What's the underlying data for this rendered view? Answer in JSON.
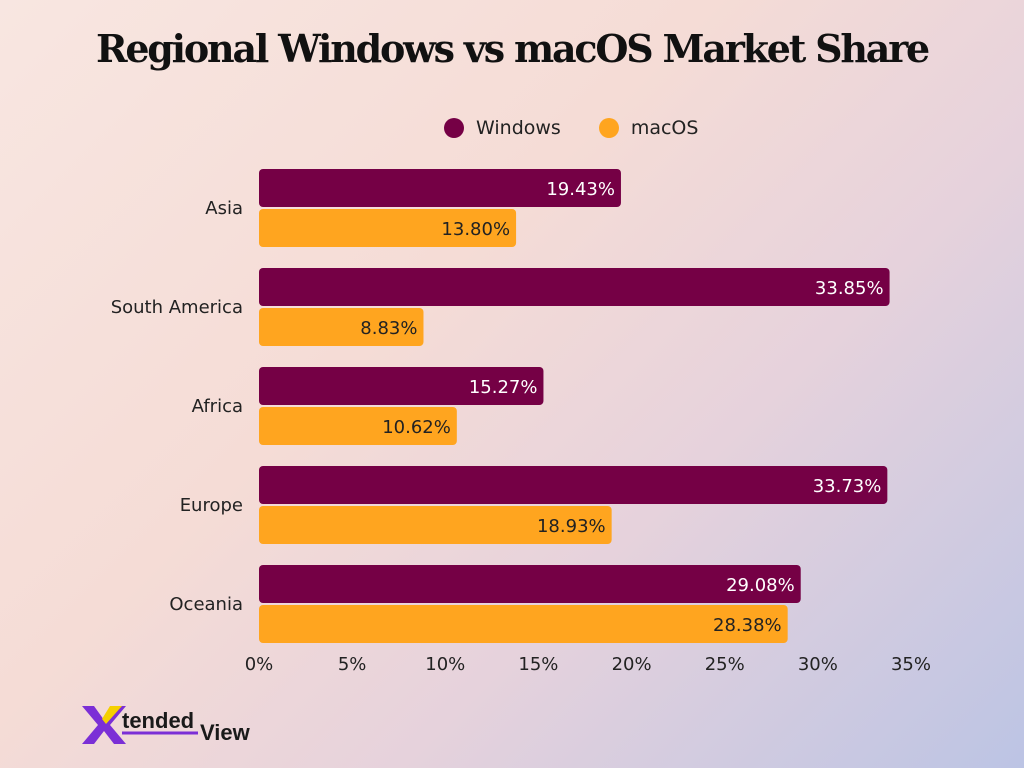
{
  "chart_data": {
    "type": "bar",
    "orientation": "horizontal",
    "title": "Regional Windows vs macOS Market Share",
    "categories": [
      "Asia",
      "South America",
      "Africa",
      "Europe",
      "Oceania"
    ],
    "series": [
      {
        "name": "Windows",
        "color": "#750045",
        "values": [
          19.43,
          33.85,
          15.27,
          33.73,
          29.08
        ],
        "labels": [
          "19.43%",
          "33.85%",
          "15.27%",
          "33.73%",
          "29.08%"
        ]
      },
      {
        "name": "macOS",
        "color": "#ffa51f",
        "values": [
          13.8,
          8.83,
          10.62,
          18.93,
          28.38
        ],
        "labels": [
          "13.80%",
          "8.83%",
          "10.62%",
          "18.93%",
          "28.38%"
        ]
      }
    ],
    "xlim": [
      0,
      35
    ],
    "xticks": [
      0,
      5,
      10,
      15,
      20,
      25,
      30,
      35
    ],
    "xtick_labels": [
      "0%",
      "5%",
      "10%",
      "15%",
      "20%",
      "25%",
      "30%",
      "35%"
    ],
    "legend_position": "top-center",
    "grid": false
  },
  "logo": {
    "text_x": "X",
    "text_tended": "tended",
    "text_view": "View",
    "colors": {
      "purple": "#7b2fd6",
      "yellow": "#f5d000",
      "dark": "#1a1a1a"
    }
  }
}
